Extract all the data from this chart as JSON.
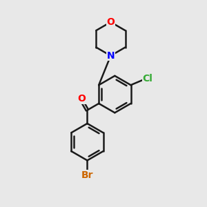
{
  "background_color": "#e8e8e8",
  "bond_color": "#1a1a1a",
  "bond_width": 1.8,
  "atom_labels": {
    "O": {
      "color": "#ff0000",
      "fontsize": 10,
      "fontweight": "bold"
    },
    "N": {
      "color": "#0000ff",
      "fontsize": 10,
      "fontweight": "bold"
    },
    "Cl": {
      "color": "#33aa33",
      "fontsize": 10,
      "fontweight": "bold"
    },
    "Br": {
      "color": "#cc6600",
      "fontsize": 10,
      "fontweight": "bold"
    }
  },
  "figsize": [
    3.0,
    3.0
  ],
  "dpi": 100
}
